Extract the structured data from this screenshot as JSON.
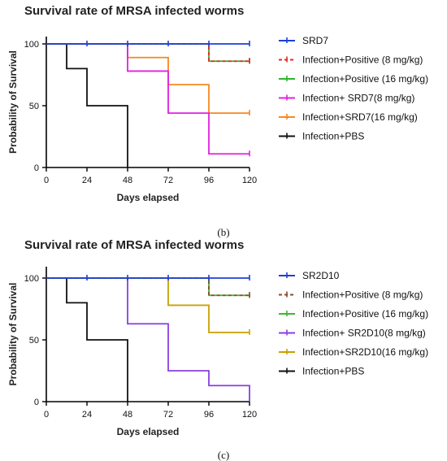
{
  "chart_data": [
    {
      "type": "line",
      "title": "Survival rate of MRSA infected worms",
      "xlabel": "Days elapsed",
      "ylabel": "Probability of Survival",
      "xlim": [
        0,
        120
      ],
      "ylim": [
        0,
        100
      ],
      "x_ticks": [
        0,
        24,
        48,
        72,
        96,
        120
      ],
      "y_ticks": [
        0,
        50,
        100
      ],
      "caption": "(b)",
      "legend_position": "right",
      "series": [
        {
          "name": "SRD7",
          "color": "#1f3fd6",
          "dash": "",
          "steps": [
            [
              0,
              100
            ],
            [
              120,
              100
            ]
          ],
          "ticks": [
            24,
            48,
            72,
            96,
            120
          ]
        },
        {
          "name": "Infection+Positive (8 mg/kg)",
          "color": "#e32626",
          "dash": "4 3",
          "steps": [
            [
              0,
              100
            ],
            [
              96,
              86
            ],
            [
              120,
              86
            ]
          ],
          "ticks": [
            120
          ]
        },
        {
          "name": "Infection+Positive (16 mg/kg)",
          "color": "#2db52d",
          "dash": "",
          "steps": [
            [
              0,
              100
            ],
            [
              96,
              86
            ],
            [
              120,
              86
            ]
          ],
          "ticks": [
            120
          ]
        },
        {
          "name": "Infection+ SRD7(8 mg/kg)",
          "color": "#e020e0",
          "dash": "",
          "steps": [
            [
              0,
              100
            ],
            [
              48,
              78
            ],
            [
              72,
              44
            ],
            [
              96,
              11
            ],
            [
              120,
              11
            ]
          ],
          "ticks": [
            120
          ]
        },
        {
          "name": "Infection+SRD7(16 mg/kg)",
          "color": "#f5891f",
          "dash": "",
          "steps": [
            [
              0,
              100
            ],
            [
              48,
              89
            ],
            [
              72,
              67
            ],
            [
              96,
              44
            ],
            [
              120,
              44
            ]
          ],
          "ticks": [
            120
          ]
        },
        {
          "name": "Infection+PBS",
          "color": "#111111",
          "dash": "",
          "steps": [
            [
              0,
              100
            ],
            [
              12,
              80
            ],
            [
              24,
              50
            ],
            [
              48,
              0
            ]
          ],
          "ticks": []
        }
      ]
    },
    {
      "type": "line",
      "title": "Survival rate of MRSA infected worms",
      "xlabel": "Days elapsed",
      "ylabel": "Probability of Survival",
      "xlim": [
        0,
        120
      ],
      "ylim": [
        0,
        100
      ],
      "x_ticks": [
        0,
        24,
        48,
        72,
        96,
        120
      ],
      "y_ticks": [
        0,
        50,
        100
      ],
      "caption": "(c)",
      "legend_position": "right",
      "series": [
        {
          "name": "SR2D10",
          "color": "#1f3fd6",
          "dash": "",
          "steps": [
            [
              0,
              100
            ],
            [
              120,
              100
            ]
          ],
          "ticks": [
            24,
            48,
            72,
            96,
            120
          ]
        },
        {
          "name": "Infection+Positive (8 mg/kg)",
          "color": "#8b4a2b",
          "dash": "4 3",
          "steps": [
            [
              0,
              100
            ],
            [
              96,
              86
            ],
            [
              120,
              86
            ]
          ],
          "ticks": [
            120
          ]
        },
        {
          "name": "Infection+Positive (16 mg/kg)",
          "color": "#3cb82e",
          "dash": "",
          "steps": [
            [
              0,
              100
            ],
            [
              96,
              86
            ],
            [
              120,
              86
            ]
          ],
          "ticks": [
            120
          ]
        },
        {
          "name": "Infection+ SR2D10(8 mg/kg)",
          "color": "#8a3fe0",
          "dash": "",
          "steps": [
            [
              0,
              100
            ],
            [
              48,
              63
            ],
            [
              72,
              25
            ],
            [
              96,
              13
            ],
            [
              120,
              13
            ],
            [
              120,
              0
            ]
          ],
          "ticks": []
        },
        {
          "name": "Infection+SR2D10(16 mg/kg)",
          "color": "#c9a000",
          "dash": "",
          "steps": [
            [
              0,
              100
            ],
            [
              72,
              78
            ],
            [
              96,
              56
            ],
            [
              120,
              56
            ]
          ],
          "ticks": [
            120
          ]
        },
        {
          "name": "Infection+PBS",
          "color": "#111111",
          "dash": "",
          "steps": [
            [
              0,
              100
            ],
            [
              12,
              80
            ],
            [
              24,
              50
            ],
            [
              48,
              0
            ]
          ],
          "ticks": []
        }
      ]
    }
  ]
}
